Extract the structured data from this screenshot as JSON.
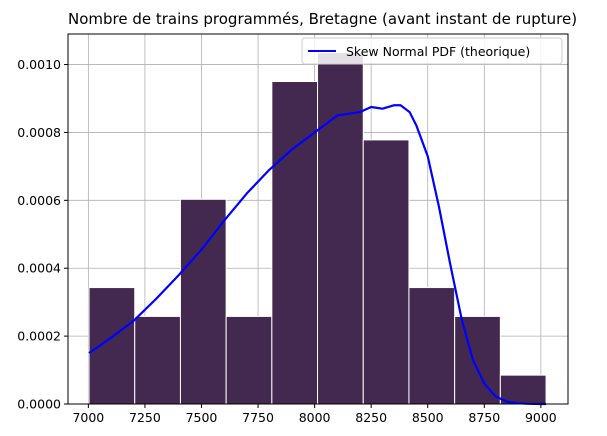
{
  "chart_data": {
    "type": "bar",
    "title": "Nombre de trains programmés, Bretagne (avant instant de rupture)",
    "xlabel": "",
    "ylabel": "",
    "xlim": [
      6910,
      9120
    ],
    "ylim": [
      0,
      0.00109
    ],
    "grid": true,
    "legend_position": "top-right",
    "xticks": [
      7000,
      7250,
      7500,
      7750,
      8000,
      8250,
      8500,
      8750,
      9000
    ],
    "xtick_labels": [
      "7000",
      "7250",
      "7500",
      "7750",
      "8000",
      "8250",
      "8500",
      "8750",
      "9000"
    ],
    "yticks": [
      0,
      0.0002,
      0.0004,
      0.0006,
      0.0008,
      0.001
    ],
    "ytick_labels": [
      "0.0000",
      "0.0002",
      "0.0004",
      "0.0006",
      "0.0008",
      "0.0010"
    ],
    "histogram": {
      "color": "#43294f",
      "edge_color": "#ffffff",
      "bin_edges": [
        7003,
        7205,
        7407,
        7609,
        7811,
        8013,
        8215,
        8417,
        8619,
        8821,
        9023
      ],
      "values": [
        0.000343,
        0.000258,
        0.000603,
        0.000258,
        0.00095,
        0.001035,
        0.000778,
        0.000343,
        0.000258,
        8.5e-05
      ]
    },
    "series": [
      {
        "name": "Skew Normal PDF (theorique)",
        "type": "line",
        "color": "#0000ff",
        "x": [
          7003,
          7100,
          7200,
          7300,
          7400,
          7500,
          7600,
          7700,
          7800,
          7900,
          8000,
          8100,
          8200,
          8250,
          8300,
          8350,
          8380,
          8420,
          8450,
          8500,
          8550,
          8600,
          8650,
          8700,
          8750,
          8800,
          8850,
          8900,
          8950,
          9000,
          9023
        ],
        "y": [
          0.00015,
          0.000195,
          0.000245,
          0.00031,
          0.00038,
          0.000455,
          0.00054,
          0.00062,
          0.00069,
          0.00075,
          0.0008,
          0.00085,
          0.00086,
          0.000875,
          0.00087,
          0.00088,
          0.00088,
          0.00086,
          0.00082,
          0.00073,
          0.00058,
          0.00041,
          0.00025,
          0.00013,
          6e-05,
          2.2e-05,
          7e-06,
          2e-06,
          5e-07,
          1e-07,
          0.0
        ]
      }
    ]
  }
}
